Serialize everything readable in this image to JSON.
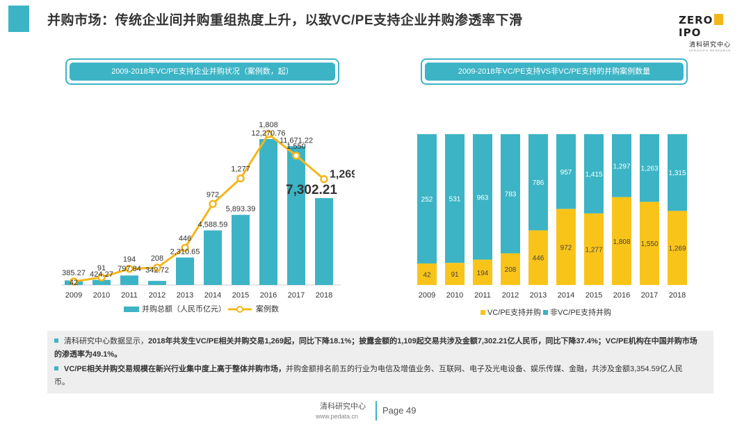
{
  "title": "并购市场：传统企业间并购重组热度上升，以致VC/PE支持企业并购渗透率下滑",
  "logo": {
    "top_left": "ZERO",
    "top_right": "IPO",
    "sub": "清科研究中心",
    "tiny": "ZERO2IPO RESEARCH"
  },
  "colors": {
    "teal": "#3cb4c5",
    "yellow": "#f9c41a",
    "line_yellow": "#f3b71b"
  },
  "left_header": "2009-2018年VC/PE支持企业并购状况（案例数，起）",
  "right_header": "2009-2018年VC/PE支持VS非VC/PE支持的并购案例数量",
  "chart_data": [
    {
      "type": "bar",
      "categories": [
        "2009",
        "2010",
        "2011",
        "2012",
        "2013",
        "2014",
        "2015",
        "2016",
        "2017",
        "2018"
      ],
      "series": [
        {
          "name": "并购总额（人民币亿元）",
          "type": "bar",
          "values": [
            385.27,
            424.27,
            797.84,
            342.72,
            2310.65,
            4588.59,
            5893.39,
            12270.76,
            11671.22,
            7302.21
          ],
          "labels": [
            "385.27",
            "424.27",
            "797.84",
            "342.72",
            "2,310.65",
            "4,588.59",
            "5,893.39",
            "12,270.76",
            "11,671.22",
            "7,302.21"
          ]
        },
        {
          "name": "案例数",
          "type": "line",
          "values": [
            42,
            91,
            194,
            208,
            446,
            972,
            1277,
            1808,
            1550,
            1269
          ],
          "labels": [
            "42",
            "91",
            "194",
            "208",
            "446",
            "972",
            "1,277",
            "1,808",
            "1,550",
            "1,269"
          ]
        }
      ],
      "legend_position": "bottom"
    },
    {
      "type": "bar",
      "stacked": true,
      "percent": true,
      "categories": [
        "2009",
        "2010",
        "2011",
        "2012",
        "2013",
        "2014",
        "2015",
        "2016",
        "2017",
        "2018"
      ],
      "series": [
        {
          "name": "VC/PE支持并购",
          "values": [
            42,
            91,
            194,
            208,
            446,
            972,
            1277,
            1808,
            1550,
            1269
          ],
          "labels": [
            "42",
            "91",
            "194",
            "208",
            "446",
            "972",
            "1,277",
            "1,808",
            "1,550",
            "1,269"
          ]
        },
        {
          "name": "非VC/PE支持并购",
          "values": [
            252,
            531,
            963,
            783,
            786,
            957,
            1415,
            1297,
            1263,
            1315
          ],
          "labels": [
            "252",
            "531",
            "963",
            "783",
            "786",
            "957",
            "1,415",
            "1,297",
            "1,263",
            "1,315"
          ]
        }
      ],
      "legend_position": "bottom"
    }
  ],
  "notes": {
    "n1_a": "清科研究中心数据显示，",
    "n1_b": "2018年共发生VC/PE相关并购交易1,269起，同比下降18.1%；披露金额的1,109起交易共涉及金额7,302.21亿人民币，同比下降37.4%；VC/PE机构在中国并购市场的渗透率为49.1%。",
    "n2_b": "VC/PE相关并购交易规模在新兴行业集中度上高于整体并购市场，",
    "n2_c": "并购金额排名前五的行业为电信及增值业务、互联网、电子及光电设备、娱乐传媒、金融，共涉及金额3,354.59亿人民币。"
  },
  "footer": {
    "source": "清科研究中心",
    "url": "www.pedata.cn",
    "page": "Page 49"
  }
}
